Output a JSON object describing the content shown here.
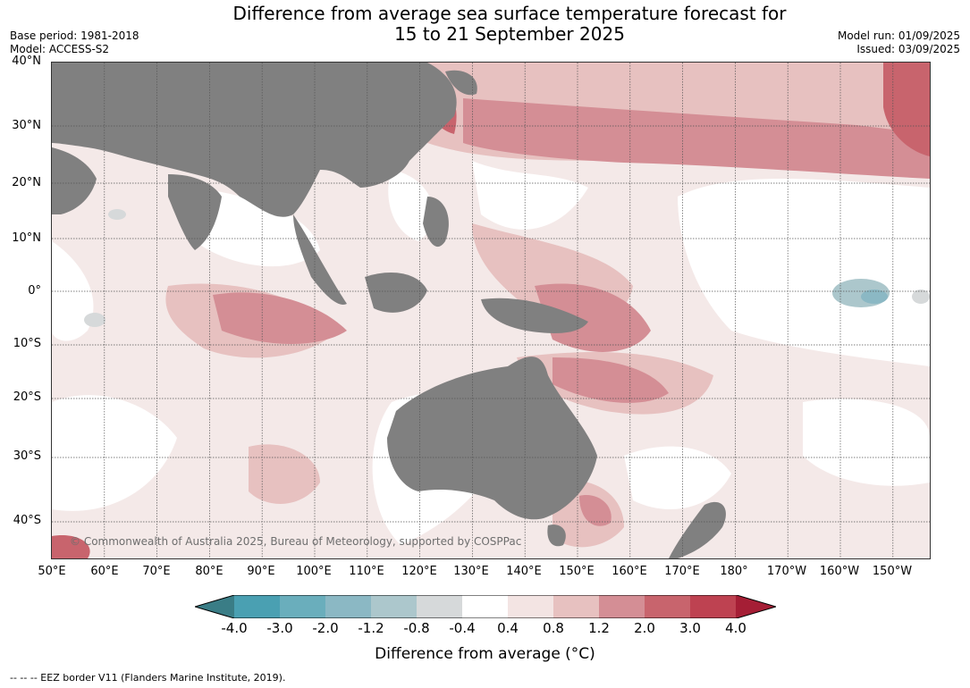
{
  "title_line1": "Difference from average sea surface temperature forecast for",
  "title_line2": "15 to 21 September 2025",
  "base_period": "Base period: 1981-2018",
  "model": "Model: ACCESS-S2",
  "model_run": "Model run: 01/09/2025",
  "issued": "Issued: 03/09/2025",
  "copyright": "© Commonwealth of Australia 2025, Bureau of Meteorology, supported by COSPPac",
  "lat_labels": [
    "40°N",
    "30°N",
    "20°N",
    "10°N",
    "0°",
    "10°S",
    "20°S",
    "30°S",
    "40°S"
  ],
  "lon_labels": [
    "50°E",
    "60°E",
    "70°E",
    "80°E",
    "90°E",
    "100°E",
    "110°E",
    "120°E",
    "130°E",
    "140°E",
    "150°E",
    "160°E",
    "170°E",
    "180°",
    "170°W",
    "160°W",
    "150°W"
  ],
  "colorbar": {
    "ticks": [
      "-4.0",
      "-3.0",
      "-2.0",
      "-1.2",
      "-0.8",
      "-0.4",
      "0.4",
      "0.8",
      "1.2",
      "2.0",
      "3.0",
      "4.0"
    ],
    "colors": [
      "#3a7d86",
      "#4aa0b2",
      "#6aaebc",
      "#8bb8c4",
      "#acc7cc",
      "#d6d9da",
      "#ffffff",
      "#f3e4e3",
      "#e7c1c0",
      "#d48e95",
      "#c8646d",
      "#be4251",
      "#a51e35"
    ],
    "label": "Difference from average ($^\\circ$C)"
  },
  "footnote": "--  --  -- EEZ border V11 (Flanders Marine Institute, 2019)."
}
